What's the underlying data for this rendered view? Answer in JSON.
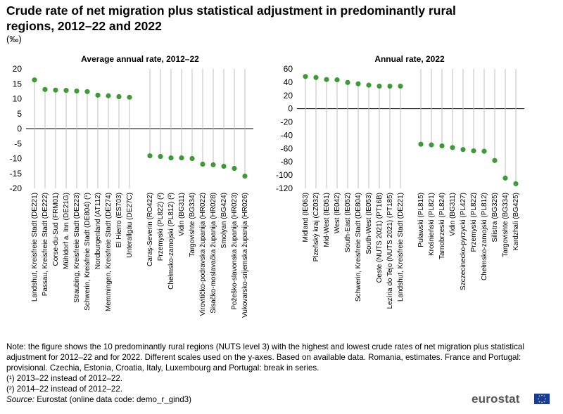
{
  "title": "Crude rate of net migration plus statistical adjustment in predominantly rural regions, 2012–22 and 2022",
  "unit": "(‰)",
  "colors": {
    "point": "#3d9b35",
    "stem": "#bfbfbf",
    "zero_line": "#000000",
    "logo_flag": "#173c9a",
    "logo_text": "#555555"
  },
  "chart_data": [
    {
      "type": "scatter",
      "title": "Average annual rate, 2012–22",
      "ylim": [
        -20,
        20
      ],
      "yticks": [
        20,
        15,
        10,
        5,
        0,
        -5,
        -10,
        -15,
        -20
      ],
      "groups": [
        {
          "categories": [
            "Landshut, Kreisfreie Stadt (DE221)",
            "Passau, Kreisfreie Stadt (DE222)",
            "Corse-du-Sud (FRM01)",
            "Mühldorf a. Inn (DE21G)",
            "Straubing, Kreisfreie Stadt (DE223)",
            "Schwerin, Kreisfreie Stadt (DE804) (¹)",
            "Nordburgenland (AT112)",
            "Memmingen, Kreisfreie Stadt (DE274)",
            "El Hierro (ES703)",
            "Unterallgäu (DE27C)"
          ],
          "values": [
            16.3,
            13.1,
            12.9,
            12.8,
            12.6,
            12.4,
            11.2,
            11.0,
            10.7,
            10.5
          ]
        },
        {
          "categories": [
            "Caraş-Severin (RO422)",
            "Przemyski (PL822) (²)",
            "Chełmsko-zamojski (PL812) (²)",
            "Vidin (BG311)",
            "Targovishte (BG334)",
            "Virovitičko-podravska županija (HR022)",
            "Sisačko-moslavačka županija (HR028)",
            "Smolyan (BG424)",
            "Požeško-slavonska županija (HR023)",
            "Vukovarsko-srijemska županija (HR026)"
          ],
          "values": [
            -9.1,
            -9.3,
            -9.8,
            -9.8,
            -10.0,
            -11.9,
            -12.1,
            -12.6,
            -13.3,
            -15.9
          ]
        }
      ]
    },
    {
      "type": "scatter",
      "title": "Annual rate, 2022",
      "ylim": [
        -120,
        60
      ],
      "yticks": [
        60,
        40,
        20,
        0,
        -20,
        -40,
        -60,
        -80,
        -100,
        -120
      ],
      "groups": [
        {
          "categories": [
            "Midland (IE063)",
            "Plzeňský kraj (CZ032)",
            "Mid-West (IE051)",
            "West (IE042)",
            "South-East (IE052)",
            "Schwerin, Kreisfreie Stadt (DE804)",
            "South-West (IE053)",
            "Oeste (NUTS 2021) (PT16B)",
            "Lezíria do Tejo (NUTS 2021) (PT185)",
            "Landshut, Kreisfreie Stadt (DE221)"
          ],
          "values": [
            48.5,
            47,
            44,
            43.5,
            39.5,
            37.5,
            35.5,
            34,
            34,
            34
          ]
        },
        {
          "categories": [
            "Puławski (PL815)",
            "Krośnieński (PL821)",
            "Tarnobrzeski (PL824)",
            "Vidin (BG311)",
            "Szczecinecko-pyrzycki (PL427)",
            "Przemyski (PL822)",
            "Chełmsko-zamojski (PL812)",
            "Silistra (BG325)",
            "Targovishte (BG334)",
            "Kardzhali (BG425)"
          ],
          "values": [
            -53.5,
            -54.5,
            -56,
            -58.5,
            -61.5,
            -63.5,
            -64,
            -78,
            -104.5,
            -113
          ]
        }
      ]
    }
  ],
  "notes": {
    "main": "Note: the figure shows the 10 predominantly rural regions (NUTS level 3) with the highest and lowest crude rates of net migration plus statistical adjustment for 2012–22 and for 2022. Different scales used on the y-axes. Based on available data. Romania, estimates. France and Portugal: provisional. Czechia, Estonia, Croatia, Italy, Luxembourg and Portugal: break in series.",
    "footnote1": "(¹) 2013–22 instead of 2012–22.",
    "footnote2": "(²) 2014–22 instead of 2012–22.",
    "source_label": "Source:",
    "source_text": " Eurostat (online data code: demo_r_gind3)"
  },
  "logo": {
    "text": "eurostat"
  }
}
